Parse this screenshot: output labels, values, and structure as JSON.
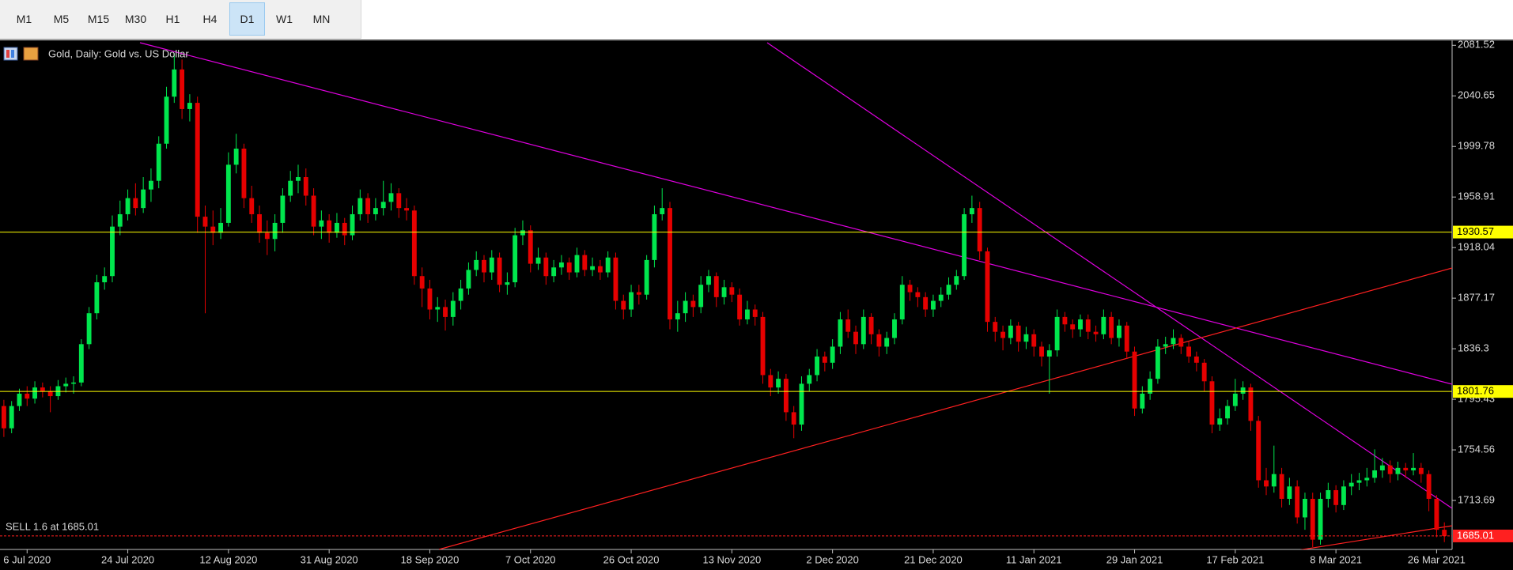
{
  "toolbar": {
    "timeframes": [
      "M1",
      "M5",
      "M15",
      "M30",
      "H1",
      "H4",
      "D1",
      "W1",
      "MN"
    ],
    "active_timeframe": "D1"
  },
  "chart_data": {
    "type": "candlestick",
    "title": "Gold, Daily:  Gold vs. US Dollar",
    "up_color": "#00e64d",
    "down_color": "#e60000",
    "ylim": [
      1674.1,
      2084.9
    ],
    "yticks": [
      1713.69,
      1754.56,
      1795.43,
      1836.3,
      1877.17,
      1918.04,
      1958.91,
      1999.78,
      2040.65,
      2081.52
    ],
    "levels": [
      {
        "price": 1930.57,
        "color": "#ffff00"
      },
      {
        "price": 1801.76,
        "color": "#ffff00"
      },
      {
        "price": 1685.01,
        "color": "#ff2020",
        "dash": true
      }
    ],
    "annotations": [
      "SELL 1.6 at 1685.01"
    ],
    "categories": [
      null,
      null,
      null,
      "6 Jul 2020",
      null,
      null,
      null,
      null,
      null,
      null,
      null,
      null,
      null,
      null,
      null,
      null,
      "24 Jul 2020",
      null,
      null,
      null,
      null,
      null,
      null,
      null,
      null,
      null,
      null,
      null,
      null,
      "12 Aug 2020",
      null,
      null,
      null,
      null,
      null,
      null,
      null,
      null,
      null,
      null,
      null,
      null,
      "31 Aug 2020",
      null,
      null,
      null,
      null,
      null,
      null,
      null,
      null,
      null,
      null,
      null,
      null,
      "18 Sep 2020",
      null,
      null,
      null,
      null,
      null,
      null,
      null,
      null,
      null,
      null,
      null,
      null,
      "7 Oct 2020",
      null,
      null,
      null,
      null,
      null,
      null,
      null,
      null,
      null,
      null,
      null,
      null,
      "26 Oct 2020",
      null,
      null,
      null,
      null,
      null,
      null,
      null,
      null,
      null,
      null,
      null,
      null,
      "13 Nov 2020",
      null,
      null,
      null,
      null,
      null,
      null,
      null,
      null,
      null,
      null,
      null,
      null,
      "2 Dec 2020",
      null,
      null,
      null,
      null,
      null,
      null,
      null,
      null,
      null,
      null,
      null,
      null,
      "21 Dec 2020",
      null,
      null,
      null,
      null,
      null,
      null,
      null,
      null,
      null,
      null,
      null,
      null,
      "11 Jan 2021",
      null,
      null,
      null,
      null,
      null,
      null,
      null,
      null,
      null,
      null,
      null,
      null,
      "29 Jan 2021",
      null,
      null,
      null,
      null,
      null,
      null,
      null,
      null,
      null,
      null,
      null,
      null,
      "17 Feb 2021",
      null,
      null,
      null,
      null,
      null,
      null,
      null,
      null,
      null,
      null,
      null,
      null,
      "8 Mar 2021",
      null,
      null,
      null,
      null,
      null,
      null,
      null,
      null,
      null,
      null,
      null,
      null,
      "26 Mar 2021",
      null
    ],
    "open": [
      1790,
      1772,
      1790,
      1800,
      1796,
      1805,
      1802,
      1798,
      1806,
      1808,
      1809,
      1840,
      1865,
      1890,
      1895,
      1935,
      1945,
      1958,
      1950,
      1965,
      1972,
      2002,
      2040,
      2062,
      2030,
      2035,
      1943,
      1935,
      1930,
      1938,
      1985,
      1998,
      1958,
      1945,
      1930,
      1925,
      1938,
      1960,
      1972,
      1975,
      1960,
      1935,
      1940,
      1930,
      1938,
      1928,
      1945,
      1958,
      1945,
      1950,
      1955,
      1962,
      1950,
      1948,
      1895,
      1885,
      1868,
      1870,
      1862,
      1875,
      1885,
      1900,
      1908,
      1898,
      1910,
      1888,
      1890,
      1928,
      1932,
      1905,
      1910,
      1895,
      1902,
      1906,
      1898,
      1912,
      1900,
      1903,
      1898,
      1910,
      1875,
      1868,
      1882,
      1880,
      1908,
      1945,
      1950,
      1860,
      1865,
      1875,
      1870,
      1888,
      1895,
      1878,
      1886,
      1880,
      1860,
      1868,
      1862,
      1815,
      1805,
      1812,
      1785,
      1775,
      1808,
      1815,
      1830,
      1825,
      1838,
      1860,
      1850,
      1840,
      1862,
      1848,
      1838,
      1845,
      1860,
      1888,
      1882,
      1878,
      1868,
      1875,
      1880,
      1888,
      1895,
      1945,
      1950,
      1915,
      1858,
      1850,
      1845,
      1855,
      1842,
      1848,
      1838,
      1830,
      1835,
      1862,
      1856,
      1852,
      1860,
      1850,
      1848,
      1862,
      1845,
      1855,
      1834,
      1788,
      1800,
      1812,
      1838,
      1840,
      1845,
      1838,
      1830,
      1825,
      1810,
      1775,
      1780,
      1790,
      1800,
      1805,
      1778,
      1730,
      1725,
      1735,
      1715,
      1725,
      1700,
      1715,
      1682,
      1715,
      1722,
      1710,
      1725,
      1728,
      1730,
      1732,
      1738,
      1742,
      1735,
      1740,
      1738,
      1740,
      1735,
      1715,
      1690
    ],
    "high": [
      1795,
      1794,
      1804,
      1806,
      1810,
      1809,
      1806,
      1811,
      1813,
      1814,
      1844,
      1870,
      1896,
      1902,
      1944,
      1956,
      1965,
      1970,
      1975,
      1982,
      2008,
      2048,
      2075,
      2070,
      2042,
      2040,
      1952,
      1948,
      1950,
      1995,
      2010,
      2002,
      1968,
      1952,
      1940,
      1945,
      1966,
      1980,
      1985,
      1982,
      1966,
      1948,
      1945,
      1946,
      1942,
      1952,
      1965,
      1962,
      1958,
      1972,
      1970,
      1966,
      1958,
      1952,
      1902,
      1892,
      1878,
      1876,
      1882,
      1892,
      1906,
      1915,
      1912,
      1916,
      1914,
      1898,
      1934,
      1940,
      1936,
      1918,
      1914,
      1908,
      1912,
      1910,
      1918,
      1916,
      1910,
      1908,
      1915,
      1914,
      1880,
      1888,
      1888,
      1912,
      1952,
      1966,
      1955,
      1875,
      1882,
      1880,
      1895,
      1900,
      1898,
      1892,
      1890,
      1885,
      1875,
      1872,
      1866,
      1820,
      1818,
      1816,
      1790,
      1814,
      1820,
      1836,
      1834,
      1844,
      1866,
      1868,
      1855,
      1868,
      1865,
      1852,
      1850,
      1865,
      1895,
      1892,
      1886,
      1882,
      1880,
      1886,
      1894,
      1900,
      1950,
      1960,
      1955,
      1918,
      1862,
      1855,
      1860,
      1858,
      1854,
      1852,
      1842,
      1840,
      1868,
      1866,
      1860,
      1864,
      1864,
      1855,
      1868,
      1866,
      1860,
      1858,
      1838,
      1806,
      1818,
      1844,
      1846,
      1852,
      1848,
      1842,
      1834,
      1828,
      1814,
      1788,
      1795,
      1812,
      1810,
      1808,
      1782,
      1740,
      1758,
      1740,
      1732,
      1730,
      1720,
      1720,
      1720,
      1728,
      1726,
      1730,
      1735,
      1736,
      1740,
      1755,
      1748,
      1746,
      1745,
      1744,
      1752,
      1744,
      1738,
      1718,
      1696
    ],
    "low": [
      1765,
      1768,
      1786,
      1790,
      1792,
      1797,
      1785,
      1795,
      1801,
      1800,
      1806,
      1836,
      1860,
      1884,
      1890,
      1928,
      1940,
      1944,
      1946,
      1955,
      1966,
      1998,
      2035,
      2022,
      2020,
      1930,
      1865,
      1920,
      1925,
      1935,
      1978,
      1950,
      1938,
      1922,
      1912,
      1915,
      1930,
      1955,
      1962,
      1952,
      1928,
      1925,
      1922,
      1926,
      1920,
      1924,
      1940,
      1938,
      1940,
      1944,
      1948,
      1942,
      1940,
      1888,
      1870,
      1860,
      1858,
      1851,
      1855,
      1868,
      1880,
      1895,
      1890,
      1892,
      1882,
      1880,
      1886,
      1920,
      1898,
      1900,
      1888,
      1890,
      1896,
      1892,
      1894,
      1895,
      1895,
      1892,
      1894,
      1868,
      1860,
      1862,
      1872,
      1876,
      1902,
      1940,
      1852,
      1850,
      1858,
      1862,
      1865,
      1882,
      1870,
      1872,
      1874,
      1855,
      1856,
      1855,
      1808,
      1798,
      1800,
      1778,
      1764,
      1770,
      1802,
      1810,
      1818,
      1820,
      1832,
      1845,
      1832,
      1836,
      1840,
      1830,
      1832,
      1840,
      1856,
      1875,
      1870,
      1862,
      1862,
      1870,
      1876,
      1884,
      1892,
      1938,
      1908,
      1850,
      1842,
      1835,
      1840,
      1834,
      1836,
      1830,
      1822,
      1800,
      1830,
      1850,
      1845,
      1846,
      1844,
      1842,
      1844,
      1840,
      1838,
      1828,
      1782,
      1784,
      1795,
      1808,
      1832,
      1836,
      1832,
      1825,
      1818,
      1802,
      1768,
      1770,
      1775,
      1786,
      1795,
      1770,
      1724,
      1718,
      1720,
      1708,
      1710,
      1695,
      1690,
      1676,
      1678,
      1708,
      1704,
      1706,
      1718,
      1722,
      1725,
      1728,
      1732,
      1728,
      1730,
      1732,
      1734,
      1728,
      1705,
      1684,
      1680
    ],
    "close": [
      1772,
      1790,
      1800,
      1796,
      1805,
      1802,
      1798,
      1806,
      1808,
      1809,
      1840,
      1865,
      1890,
      1895,
      1935,
      1945,
      1958,
      1950,
      1965,
      1972,
      2002,
      2040,
      2062,
      2030,
      2035,
      1943,
      1935,
      1930,
      1938,
      1985,
      1998,
      1958,
      1945,
      1930,
      1925,
      1938,
      1960,
      1972,
      1975,
      1960,
      1935,
      1940,
      1930,
      1938,
      1928,
      1945,
      1958,
      1945,
      1950,
      1955,
      1962,
      1950,
      1948,
      1895,
      1885,
      1868,
      1870,
      1862,
      1875,
      1885,
      1900,
      1908,
      1898,
      1910,
      1888,
      1890,
      1928,
      1932,
      1905,
      1910,
      1895,
      1902,
      1906,
      1898,
      1912,
      1900,
      1903,
      1898,
      1910,
      1875,
      1868,
      1882,
      1880,
      1908,
      1945,
      1950,
      1860,
      1865,
      1875,
      1870,
      1888,
      1895,
      1878,
      1886,
      1880,
      1860,
      1868,
      1862,
      1815,
      1805,
      1812,
      1785,
      1775,
      1808,
      1815,
      1830,
      1825,
      1838,
      1860,
      1850,
      1840,
      1862,
      1848,
      1838,
      1845,
      1860,
      1888,
      1882,
      1878,
      1868,
      1875,
      1880,
      1888,
      1895,
      1945,
      1950,
      1915,
      1858,
      1850,
      1845,
      1855,
      1842,
      1848,
      1838,
      1830,
      1835,
      1862,
      1856,
      1852,
      1860,
      1850,
      1848,
      1862,
      1845,
      1855,
      1834,
      1788,
      1800,
      1812,
      1838,
      1840,
      1845,
      1838,
      1830,
      1825,
      1810,
      1775,
      1780,
      1790,
      1800,
      1805,
      1778,
      1730,
      1725,
      1735,
      1715,
      1725,
      1700,
      1715,
      1682,
      1715,
      1722,
      1710,
      1725,
      1728,
      1730,
      1732,
      1738,
      1742,
      1735,
      1740,
      1738,
      1740,
      1735,
      1715,
      1690,
      1685
    ]
  }
}
